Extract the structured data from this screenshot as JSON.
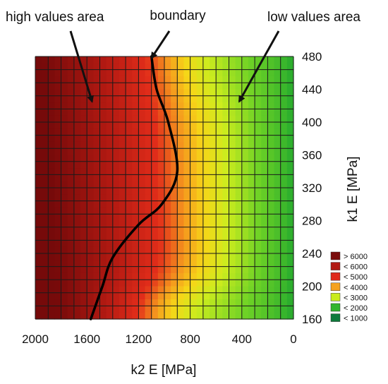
{
  "chart_data": {
    "type": "heatmap",
    "xlabel": "k2 E [MPa]",
    "ylabel": "k1 E [MPa]",
    "xlim": [
      2000,
      0
    ],
    "ylim": [
      160,
      480
    ],
    "x_ticks": [
      "2000",
      "1600",
      "1200",
      "800",
      "400",
      "0"
    ],
    "y_ticks": [
      "480",
      "440",
      "400",
      "360",
      "320",
      "280",
      "240",
      "200",
      "160"
    ],
    "grid": true,
    "legend_placement": "bottom-right",
    "legend": [
      {
        "label": "> 6000",
        "color": "#7a0b0b"
      },
      {
        "label": "< 6000",
        "color": "#b11a12"
      },
      {
        "label": "< 5000",
        "color": "#e0281a"
      },
      {
        "label": "< 4000",
        "color": "#f5a21f"
      },
      {
        "label": "< 3000",
        "color": "#c9ec1c"
      },
      {
        "label": "< 2000",
        "color": "#33b52e"
      },
      {
        "label": "< 1000",
        "color": "#0f7a3c"
      }
    ],
    "boundary_line": [
      {
        "x": 1570,
        "y": 160
      },
      {
        "x": 1480,
        "y": 200
      },
      {
        "x": 1400,
        "y": 235
      },
      {
        "x": 1200,
        "y": 275
      },
      {
        "x": 1020,
        "y": 300
      },
      {
        "x": 900,
        "y": 340
      },
      {
        "x": 970,
        "y": 400
      },
      {
        "x": 1060,
        "y": 440
      },
      {
        "x": 1100,
        "y": 480
      }
    ],
    "annotations": [
      {
        "text": "high values area",
        "points_to": {
          "x": 1560,
          "y": 425
        }
      },
      {
        "text": "boundary",
        "points_to": {
          "x": 1100,
          "y": 478
        }
      },
      {
        "text": "low values area",
        "points_to": {
          "x": 420,
          "y": 425
        }
      }
    ]
  }
}
